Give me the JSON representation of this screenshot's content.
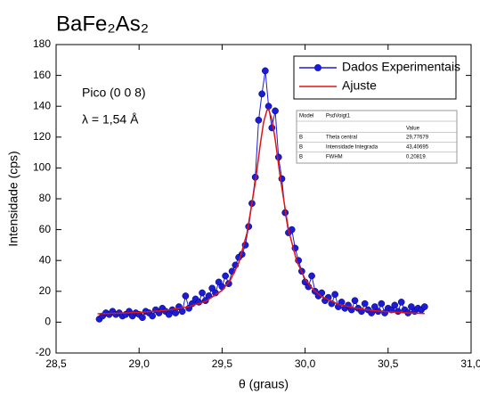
{
  "chart_data": {
    "type": "line",
    "title": "BaFe₂As₂",
    "x_label": "θ (graus)",
    "y_label": "Intensidade (cps)",
    "annotations": [
      "Pico (0 0 8)",
      "λ = 1,54 Å"
    ],
    "xlim": [
      28.5,
      31.0
    ],
    "xticks": [
      {
        "value": 28.5,
        "label": "28,5"
      },
      {
        "value": 29.0,
        "label": "29,0"
      },
      {
        "value": 29.5,
        "label": "29,5"
      },
      {
        "value": 30.0,
        "label": "30,0"
      },
      {
        "value": 30.5,
        "label": "30,5"
      },
      {
        "value": 31.0,
        "label": "31,0"
      }
    ],
    "ylim": [
      -20,
      180
    ],
    "yticks": [
      -20,
      0,
      20,
      40,
      60,
      80,
      100,
      120,
      140,
      160,
      180
    ],
    "legend_loc": "upper right",
    "series": [
      {
        "name": "Dados Experimentais",
        "color": "#1c1cd6",
        "markers": true,
        "x": [
          28.76,
          28.78,
          28.8,
          28.82,
          28.84,
          28.86,
          28.88,
          28.9,
          28.92,
          28.94,
          28.96,
          28.98,
          29.0,
          29.02,
          29.04,
          29.06,
          29.08,
          29.1,
          29.12,
          29.14,
          29.16,
          29.18,
          29.2,
          29.22,
          29.24,
          29.26,
          29.28,
          29.3,
          29.32,
          29.34,
          29.36,
          29.38,
          29.4,
          29.42,
          29.44,
          29.46,
          29.48,
          29.5,
          29.52,
          29.54,
          29.56,
          29.58,
          29.6,
          29.62,
          29.64,
          29.66,
          29.68,
          29.7,
          29.72,
          29.74,
          29.76,
          29.78,
          29.8,
          29.82,
          29.84,
          29.86,
          29.88,
          29.9,
          29.92,
          29.94,
          29.96,
          29.98,
          30.0,
          30.02,
          30.04,
          30.06,
          30.08,
          30.1,
          30.12,
          30.14,
          30.16,
          30.18,
          30.2,
          30.22,
          30.24,
          30.26,
          30.28,
          30.3,
          30.32,
          30.34,
          30.36,
          30.38,
          30.4,
          30.42,
          30.44,
          30.46,
          30.48,
          30.5,
          30.52,
          30.54,
          30.56,
          30.58,
          30.6,
          30.62,
          30.64,
          30.66,
          30.68,
          30.7,
          30.72
        ],
        "values": [
          2,
          4,
          6,
          5,
          7,
          5,
          6,
          4,
          5,
          7,
          4,
          6,
          5,
          3,
          7,
          6,
          4,
          8,
          6,
          9,
          7,
          5,
          8,
          6,
          10,
          7,
          17,
          9,
          12,
          15,
          13,
          19,
          14,
          17,
          22,
          19,
          26,
          23,
          30,
          25,
          33,
          37,
          42,
          44,
          50,
          62,
          77,
          94,
          131,
          148,
          163,
          140,
          126,
          137,
          107,
          93,
          71,
          58,
          60,
          48,
          40,
          33,
          26,
          23,
          30,
          20,
          17,
          19,
          14,
          16,
          12,
          18,
          10,
          13,
          9,
          11,
          8,
          14,
          9,
          7,
          12,
          8,
          6,
          10,
          7,
          12,
          6,
          9,
          8,
          11,
          7,
          13,
          8,
          6,
          10,
          7,
          9,
          8,
          10
        ]
      },
      {
        "name": "Ajuste",
        "color": "#e01414",
        "markers": false,
        "x": [
          28.75,
          28.9,
          29.0,
          29.1,
          29.2,
          29.3,
          29.4,
          29.5,
          29.55,
          29.6,
          29.65,
          29.7,
          29.73,
          29.75,
          29.77,
          29.78,
          29.8,
          29.82,
          29.85,
          29.9,
          29.95,
          30.0,
          30.05,
          30.1,
          30.2,
          30.3,
          30.4,
          30.5,
          30.6,
          30.72
        ],
        "values": [
          5.4,
          5.9,
          6.4,
          7.1,
          8.2,
          10.1,
          13.4,
          20.6,
          27.3,
          38.4,
          57.8,
          90.6,
          115.3,
          129.6,
          137.4,
          138,
          131.7,
          118.4,
          93.9,
          59.8,
          39.5,
          27.9,
          21,
          16.6,
          11.6,
          9.1,
          7.6,
          6.7,
          6.1,
          5.6
        ]
      }
    ],
    "table": {
      "header": [
        "Model",
        "PsdVoigt1"
      ],
      "value_header": "Value",
      "rows": [
        [
          "B",
          "Theta central",
          "29,77679"
        ],
        [
          "B",
          "Intensidade Integrada",
          "43,40695"
        ],
        [
          "B",
          "FWHM",
          "0,20819"
        ]
      ]
    }
  }
}
